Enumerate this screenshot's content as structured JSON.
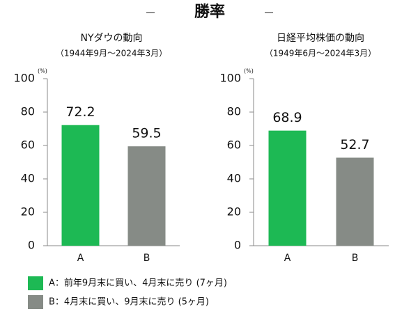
{
  "title": "勝率",
  "legend": [
    {
      "label": "A：前年9月末に買い、4月末に売り (7ヶ月)",
      "color": "#1db954"
    },
    {
      "label": "B：4月末に買い、9月末に売り (5ヶ月)",
      "color": "#868b86"
    }
  ],
  "chart_data": [
    {
      "type": "bar",
      "title": "NYダウの動向",
      "subtitle": "（1944年9月〜2024年3月）",
      "unit": "(%)",
      "categories": [
        "A",
        "B"
      ],
      "values": [
        72.2,
        59.5
      ],
      "ylim": [
        0,
        100
      ],
      "yticks": [
        0,
        20,
        40,
        60,
        80,
        100
      ]
    },
    {
      "type": "bar",
      "title": "日経平均株価の動向",
      "subtitle": "（1949年6月〜2024年3月）",
      "unit": "(%)",
      "categories": [
        "A",
        "B"
      ],
      "values": [
        68.9,
        52.7
      ],
      "ylim": [
        0,
        100
      ],
      "yticks": [
        0,
        20,
        40,
        60,
        80,
        100
      ]
    }
  ]
}
